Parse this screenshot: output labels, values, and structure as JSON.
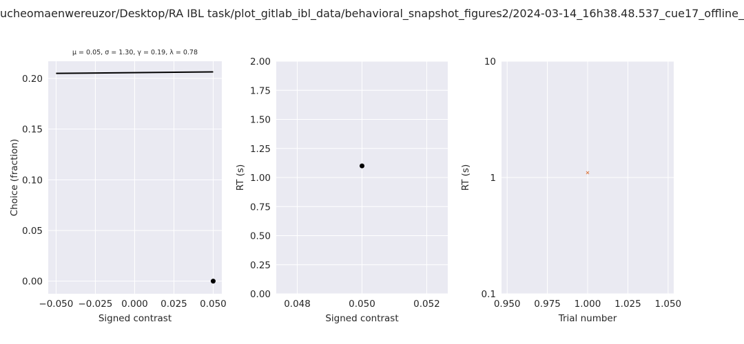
{
  "figure_title": "ucheomaenwereuzor/Desktop/RA IBL task/plot_gitlab_ibl_data/behavioral_snapshot_figures2/2024-03-14_16h38.48.537_cue17_offline_",
  "chart_data": [
    {
      "type": "line",
      "subtitle": "μ = 0.05, σ = 1.30, γ = 0.19, λ = 0.78",
      "xlabel": "Signed contrast",
      "ylabel": "Choice (fraction)",
      "xlim": [
        -0.055,
        0.0555
      ],
      "ylim": [
        -0.0125,
        0.217
      ],
      "xticks": [
        -0.05,
        -0.025,
        0.0,
        0.025,
        0.05
      ],
      "xtick_labels": [
        "−0.050",
        "−0.025",
        "0.000",
        "0.025",
        "0.050"
      ],
      "yticks": [
        0.0,
        0.05,
        0.1,
        0.15,
        0.2
      ],
      "ytick_labels": [
        "0.00",
        "0.05",
        "0.10",
        "0.15",
        "0.20"
      ],
      "grid": true,
      "series": [
        {
          "kind": "line",
          "color": "#000000",
          "x": [
            -0.05,
            0.05
          ],
          "y": [
            0.205,
            0.2065
          ]
        },
        {
          "kind": "scatter",
          "color": "#000000",
          "x": [
            0.05
          ],
          "y": [
            0.0
          ]
        }
      ]
    },
    {
      "type": "scatter",
      "xlabel": "Signed contrast",
      "ylabel": "RT (s)",
      "xlim": [
        0.04735,
        0.05265
      ],
      "ylim": [
        0.0,
        2.0
      ],
      "xticks": [
        0.048,
        0.05,
        0.052
      ],
      "xtick_labels": [
        "0.048",
        "0.050",
        "0.052"
      ],
      "yticks": [
        0.0,
        0.25,
        0.5,
        0.75,
        1.0,
        1.25,
        1.5,
        1.75,
        2.0
      ],
      "ytick_labels": [
        "0.00",
        "0.25",
        "0.50",
        "0.75",
        "1.00",
        "1.25",
        "1.50",
        "1.75",
        "2.00"
      ],
      "grid": true,
      "series": [
        {
          "kind": "scatter",
          "color": "#000000",
          "x": [
            0.05
          ],
          "y": [
            1.1
          ]
        }
      ]
    },
    {
      "type": "scatter",
      "xlabel": "Trial number",
      "ylabel": "RT (s)",
      "xlim": [
        0.9465,
        1.0535
      ],
      "ylim": [
        0.1,
        10
      ],
      "yscale": "log",
      "xticks": [
        0.95,
        0.975,
        1.0,
        1.025,
        1.05
      ],
      "xtick_labels": [
        "0.950",
        "0.975",
        "1.000",
        "1.025",
        "1.050"
      ],
      "yticks": [
        0.1,
        1,
        10
      ],
      "ytick_labels": [
        "0.1",
        "1",
        "10"
      ],
      "grid": true,
      "series": [
        {
          "kind": "scatter",
          "marker": "x",
          "color": "#dd8452",
          "x": [
            1.0
          ],
          "y": [
            1.1
          ]
        }
      ]
    }
  ]
}
